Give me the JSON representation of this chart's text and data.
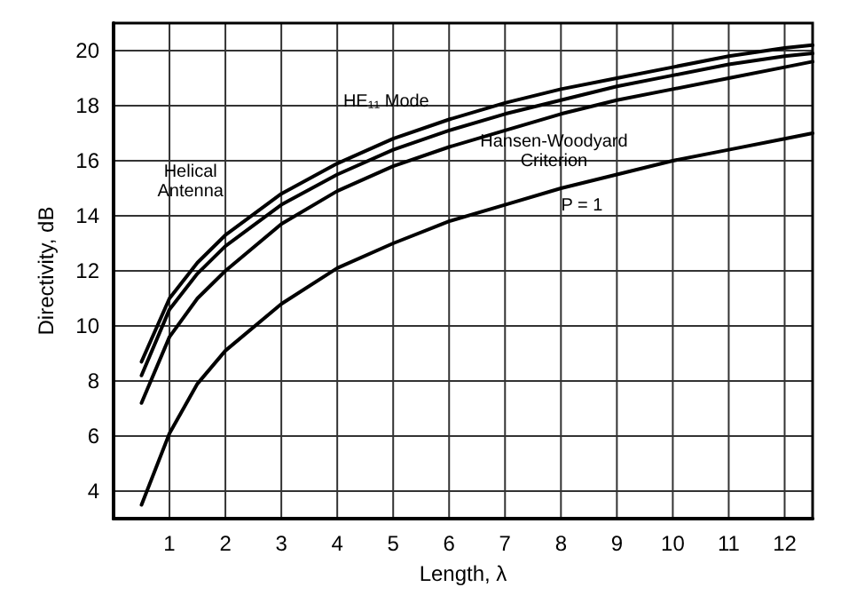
{
  "chart_data": {
    "type": "line",
    "xlabel": "Length, λ",
    "ylabel": "Directivity, dB",
    "x": [
      0.5,
      1,
      1.5,
      2,
      3,
      4,
      5,
      6,
      7,
      8,
      9,
      10,
      11,
      12,
      12.5
    ],
    "series": [
      {
        "color": "#000000",
        "values": [
          8.7,
          11.0,
          12.3,
          13.3,
          14.8,
          15.9,
          16.8,
          17.5,
          18.1,
          18.6,
          19.0,
          19.4,
          19.8,
          20.1,
          20.2
        ]
      },
      {
        "color": "#000000",
        "values": [
          8.2,
          10.6,
          11.9,
          12.9,
          14.4,
          15.5,
          16.4,
          17.1,
          17.7,
          18.2,
          18.7,
          19.1,
          19.5,
          19.8,
          19.9
        ]
      },
      {
        "color": "#000000",
        "values": [
          7.2,
          9.6,
          11.0,
          12.0,
          13.7,
          14.9,
          15.8,
          16.5,
          17.1,
          17.7,
          18.2,
          18.6,
          19.0,
          19.4,
          19.6
        ]
      },
      {
        "color": "#000000",
        "values": [
          3.5,
          6.1,
          7.9,
          9.1,
          10.8,
          12.1,
          13.0,
          13.8,
          14.4,
          15.0,
          15.5,
          16.0,
          16.4,
          16.8,
          17.0
        ]
      }
    ],
    "xlim": [
      0,
      12.5
    ],
    "xticks": [
      1,
      2,
      3,
      4,
      5,
      6,
      7,
      8,
      9,
      10,
      11,
      12
    ],
    "ylim": [
      3,
      21
    ],
    "yticks": [
      4,
      6,
      8,
      10,
      12,
      14,
      16,
      18,
      20
    ],
    "grid": true,
    "marker": "none",
    "line_style": "solid",
    "annotations": [
      "HE₁₁ Mode",
      "Helical\nAntenna",
      "Hansen-Woodyard\nCriterion",
      "P = 1"
    ]
  }
}
